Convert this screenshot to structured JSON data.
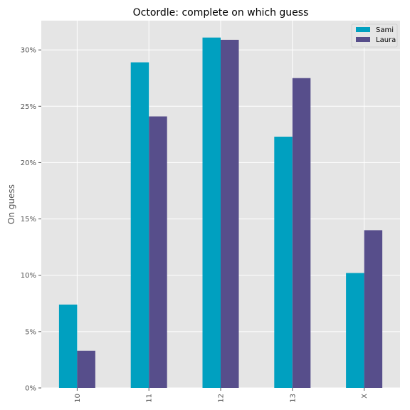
{
  "chart_data": {
    "type": "bar",
    "title": "Octordle: complete on which guess",
    "xlabel": "",
    "ylabel": "On guess",
    "categories": [
      "10",
      "11",
      "12",
      "13",
      "X"
    ],
    "series": [
      {
        "name": "Sami",
        "color": "#00a0c0",
        "values": [
          7.4,
          28.9,
          31.1,
          22.3,
          10.2
        ]
      },
      {
        "name": "Laura",
        "color": "#574e8b",
        "values": [
          3.3,
          24.1,
          30.9,
          27.5,
          14.0
        ]
      }
    ],
    "ylim": [
      0,
      32.6
    ],
    "yticks": [
      0,
      5,
      10,
      15,
      20,
      25,
      30
    ],
    "ytick_labels": [
      "0%",
      "5%",
      "10%",
      "15%",
      "20%",
      "25%",
      "30%"
    ],
    "grid": true,
    "legend_position": "top-right",
    "background": "#e5e5e5",
    "grid_color": "#ffffff"
  }
}
